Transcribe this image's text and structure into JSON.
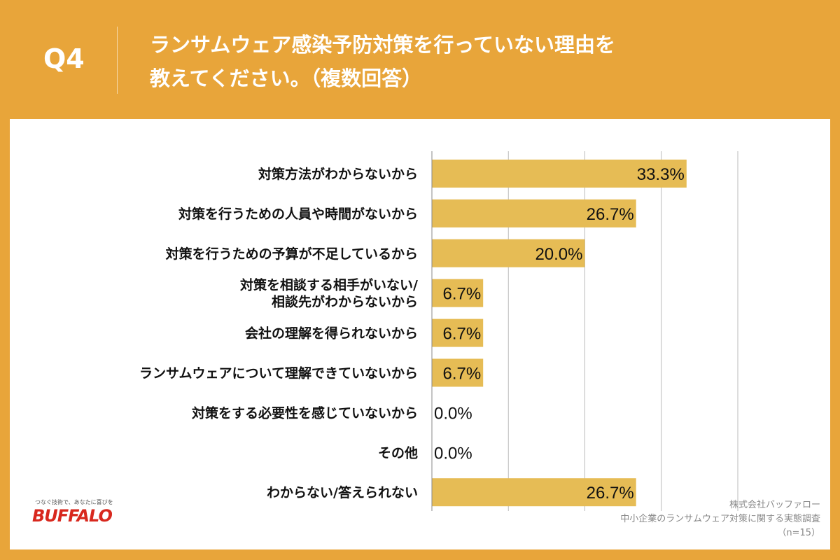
{
  "header": {
    "question": "Q4",
    "title_line1": "ランサムウェア感染予防対策を行っていない理由を",
    "title_line2": "教えてください。（複数回答）"
  },
  "logo": {
    "tagline": "つなぐ技術で、あなたに喜びを",
    "brand": "BUFFALO"
  },
  "source": {
    "company": "株式会社バッファロー",
    "survey": "中小企業のランサムウェア対策に関する実態調査",
    "n": "（n=15）"
  },
  "colors": {
    "background": "#E8A53A",
    "bar": "#E6BC55",
    "grid": "#bbbbbb"
  },
  "chart_data": {
    "type": "bar",
    "orientation": "horizontal",
    "categories": [
      "対策方法がわからないから",
      "対策を行うための人員や時間がないから",
      "対策を行うための予算が不足しているから",
      "対策を相談する相手がいない/\n相談先がわからないから",
      "会社の理解を得られないから",
      "ランサムウェアについて理解できていないから",
      "対策をする必要性を感じていないから",
      "その他",
      "わからない/答えられない"
    ],
    "values": [
      33.3,
      26.7,
      20.0,
      6.7,
      6.7,
      6.7,
      0.0,
      0.0,
      26.7
    ],
    "labels": [
      "33.3%",
      "26.7%",
      "20.0%",
      "6.7%",
      "6.7%",
      "6.7%",
      "0.0%",
      "0.0%",
      "26.7%"
    ],
    "xlim": [
      0,
      40
    ],
    "grid": true,
    "unit": "%"
  }
}
